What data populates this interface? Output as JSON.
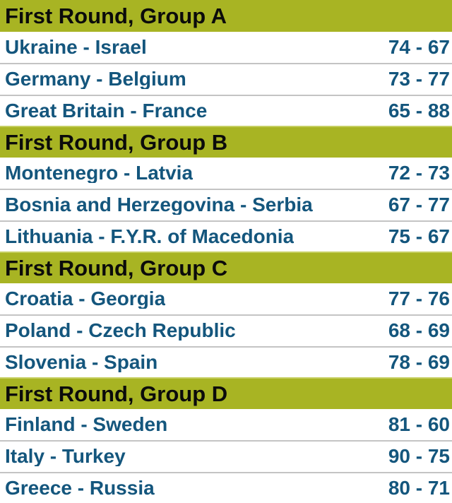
{
  "colors": {
    "group_header_bg": "#a8b423",
    "group_header_top_edge": "#c6cf62",
    "group_header_text": "#0b0b0b",
    "match_text": "#14567d",
    "row_separator": "#c4c4c4",
    "row_bg": "#ffffff"
  },
  "groups": [
    {
      "header": "First Round, Group A",
      "matches": [
        {
          "home": "Ukraine",
          "away": "Israel",
          "matchup": "Ukraine - Israel",
          "home_score": 74,
          "away_score": 67,
          "score": "74 - 67"
        },
        {
          "home": "Germany",
          "away": "Belgium",
          "matchup": "Germany - Belgium",
          "home_score": 73,
          "away_score": 77,
          "score": "73 - 77"
        },
        {
          "home": "Great Britain",
          "away": "France",
          "matchup": "Great Britain - France",
          "home_score": 65,
          "away_score": 88,
          "score": "65 - 88"
        }
      ]
    },
    {
      "header": "First Round, Group B",
      "matches": [
        {
          "home": "Montenegro",
          "away": "Latvia",
          "matchup": "Montenegro - Latvia",
          "home_score": 72,
          "away_score": 73,
          "score": "72 - 73"
        },
        {
          "home": "Bosnia and Herzegovina",
          "away": "Serbia",
          "matchup": "Bosnia and Herzegovina - Serbia",
          "home_score": 67,
          "away_score": 77,
          "score": "67 - 77"
        },
        {
          "home": "Lithuania",
          "away": "F.Y.R. of Macedonia",
          "matchup": "Lithuania - F.Y.R. of Macedonia",
          "home_score": 75,
          "away_score": 67,
          "score": "75 - 67"
        }
      ]
    },
    {
      "header": "First Round, Group C",
      "matches": [
        {
          "home": "Croatia",
          "away": "Georgia",
          "matchup": "Croatia - Georgia",
          "home_score": 77,
          "away_score": 76,
          "score": "77 - 76"
        },
        {
          "home": "Poland",
          "away": "Czech Republic",
          "matchup": "Poland - Czech Republic",
          "home_score": 68,
          "away_score": 69,
          "score": "68 - 69"
        },
        {
          "home": "Slovenia",
          "away": "Spain",
          "matchup": "Slovenia - Spain",
          "home_score": 78,
          "away_score": 69,
          "score": "78 - 69"
        }
      ]
    },
    {
      "header": "First Round, Group D",
      "matches": [
        {
          "home": "Finland",
          "away": "Sweden",
          "matchup": "Finland - Sweden",
          "home_score": 81,
          "away_score": 60,
          "score": "81 - 60"
        },
        {
          "home": "Italy",
          "away": "Turkey",
          "matchup": "Italy - Turkey",
          "home_score": 90,
          "away_score": 75,
          "score": "90 - 75"
        },
        {
          "home": "Greece",
          "away": "Russia",
          "matchup": "Greece - Russia",
          "home_score": 80,
          "away_score": 71,
          "score": "80 - 71"
        }
      ]
    }
  ]
}
